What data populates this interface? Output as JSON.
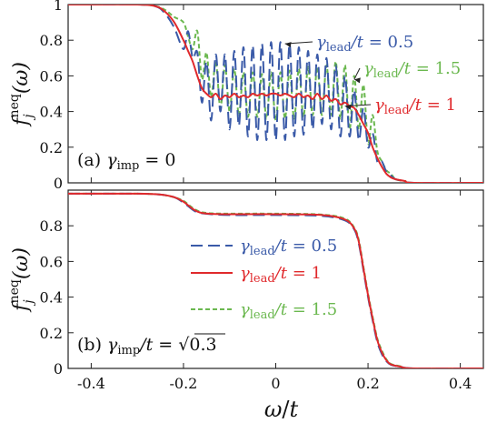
{
  "chart_data": [
    {
      "type": "line",
      "panel_label": "(a) γ_imp = 0",
      "ylabel": "f_j^neq(ω)",
      "xlabel": "",
      "xlim": [
        -0.45,
        0.45
      ],
      "ylim": [
        0,
        1
      ],
      "x_ticks": [
        -0.4,
        -0.2,
        0,
        0.2,
        0.4
      ],
      "y_ticks": [
        0,
        0.2,
        0.4,
        0.6,
        0.8,
        1
      ],
      "y_tick_labels": [
        "0",
        "0.2",
        "0.4",
        "0.6",
        "0.8",
        "1"
      ],
      "x_tick_labels": [],
      "legend": "annotations-with-arrows",
      "series": [
        {
          "name": "γ_lead/t = 0.5",
          "color": "#3a5aa8",
          "dash": "long-dash",
          "x": [
            -0.45,
            -0.3,
            -0.26,
            -0.24,
            -0.22,
            -0.2,
            -0.19,
            -0.18,
            -0.17,
            -0.16,
            -0.15,
            -0.14,
            -0.13,
            -0.12,
            -0.11,
            -0.1,
            -0.09,
            -0.08,
            -0.07,
            -0.06,
            -0.05,
            -0.04,
            -0.03,
            -0.02,
            -0.01,
            0.0,
            0.01,
            0.02,
            0.03,
            0.04,
            0.05,
            0.06,
            0.07,
            0.08,
            0.09,
            0.1,
            0.11,
            0.12,
            0.13,
            0.14,
            0.15,
            0.16,
            0.17,
            0.18,
            0.19,
            0.2,
            0.21,
            0.22,
            0.23,
            0.24,
            0.25,
            0.26,
            0.28,
            0.3,
            0.45
          ],
          "y": [
            1.0,
            1.0,
            0.99,
            0.95,
            0.87,
            0.75,
            0.85,
            0.7,
            0.73,
            0.45,
            0.68,
            0.35,
            0.72,
            0.4,
            0.72,
            0.3,
            0.74,
            0.32,
            0.76,
            0.26,
            0.77,
            0.24,
            0.78,
            0.24,
            0.79,
            0.24,
            0.79,
            0.24,
            0.78,
            0.26,
            0.76,
            0.27,
            0.74,
            0.3,
            0.72,
            0.33,
            0.7,
            0.3,
            0.66,
            0.26,
            0.6,
            0.26,
            0.52,
            0.24,
            0.42,
            0.2,
            0.28,
            0.12,
            0.12,
            0.06,
            0.04,
            0.02,
            0.01,
            0.0,
            0.0
          ]
        },
        {
          "name": "γ_lead/t = 1",
          "color": "#e0292c",
          "dash": "solid",
          "x": [
            -0.45,
            -0.3,
            -0.26,
            -0.24,
            -0.22,
            -0.2,
            -0.19,
            -0.18,
            -0.17,
            -0.16,
            -0.15,
            -0.14,
            -0.13,
            -0.12,
            -0.11,
            -0.1,
            -0.09,
            -0.08,
            -0.07,
            -0.06,
            -0.05,
            -0.04,
            -0.03,
            -0.02,
            -0.01,
            0.0,
            0.01,
            0.02,
            0.03,
            0.04,
            0.05,
            0.06,
            0.07,
            0.08,
            0.09,
            0.1,
            0.11,
            0.12,
            0.13,
            0.14,
            0.15,
            0.16,
            0.17,
            0.18,
            0.19,
            0.2,
            0.21,
            0.22,
            0.23,
            0.24,
            0.25,
            0.26,
            0.28,
            0.3,
            0.45
          ],
          "y": [
            1.0,
            1.0,
            0.99,
            0.96,
            0.9,
            0.8,
            0.74,
            0.68,
            0.6,
            0.53,
            0.5,
            0.48,
            0.5,
            0.47,
            0.49,
            0.48,
            0.5,
            0.48,
            0.49,
            0.48,
            0.5,
            0.49,
            0.5,
            0.49,
            0.5,
            0.5,
            0.49,
            0.5,
            0.49,
            0.48,
            0.5,
            0.48,
            0.49,
            0.47,
            0.5,
            0.47,
            0.49,
            0.46,
            0.47,
            0.44,
            0.45,
            0.43,
            0.42,
            0.38,
            0.33,
            0.28,
            0.2,
            0.14,
            0.09,
            0.05,
            0.03,
            0.02,
            0.01,
            0.0,
            0.0
          ]
        },
        {
          "name": "γ_lead/t = 1.5",
          "color": "#6bb84f",
          "dash": "short-dash",
          "x": [
            -0.45,
            -0.3,
            -0.26,
            -0.24,
            -0.22,
            -0.2,
            -0.19,
            -0.18,
            -0.17,
            -0.16,
            -0.15,
            -0.14,
            -0.13,
            -0.12,
            -0.11,
            -0.1,
            -0.09,
            -0.08,
            -0.07,
            -0.06,
            -0.05,
            -0.04,
            -0.03,
            -0.02,
            -0.01,
            0.0,
            0.01,
            0.02,
            0.03,
            0.04,
            0.05,
            0.06,
            0.07,
            0.08,
            0.09,
            0.1,
            0.11,
            0.12,
            0.13,
            0.14,
            0.15,
            0.16,
            0.17,
            0.18,
            0.19,
            0.2,
            0.21,
            0.22,
            0.23,
            0.24,
            0.25,
            0.26,
            0.28,
            0.3,
            0.45
          ],
          "y": [
            1.0,
            1.0,
            0.99,
            0.97,
            0.93,
            0.9,
            0.82,
            0.75,
            0.85,
            0.58,
            0.73,
            0.48,
            0.68,
            0.42,
            0.66,
            0.4,
            0.64,
            0.38,
            0.62,
            0.37,
            0.62,
            0.37,
            0.61,
            0.36,
            0.62,
            0.35,
            0.62,
            0.36,
            0.63,
            0.36,
            0.64,
            0.37,
            0.65,
            0.38,
            0.65,
            0.38,
            0.66,
            0.38,
            0.68,
            0.36,
            0.66,
            0.3,
            0.6,
            0.3,
            0.55,
            0.22,
            0.38,
            0.18,
            0.12,
            0.07,
            0.05,
            0.02,
            0.01,
            0.0,
            0.0
          ]
        }
      ],
      "annotations": [
        {
          "text": "γ_lead/t = 0.5",
          "color": "#3a5aa8",
          "points_to": [
            0.02,
            0.78
          ]
        },
        {
          "text": "γ_lead/t = 1.5",
          "color": "#6bb84f",
          "points_to": [
            0.17,
            0.58
          ]
        },
        {
          "text": "γ_lead/t = 1",
          "color": "#e0292c",
          "points_to": [
            0.15,
            0.43
          ]
        }
      ]
    },
    {
      "type": "line",
      "panel_label": "(b) γ_imp/t = √0.3",
      "ylabel": "f_j^neq(ω)",
      "xlabel": "ω/t",
      "xlim": [
        -0.45,
        0.45
      ],
      "ylim": [
        0,
        1
      ],
      "x_ticks": [
        -0.4,
        -0.2,
        0,
        0.2,
        0.4
      ],
      "x_tick_labels": [
        "-0.4",
        "-0.2",
        "0",
        "0.2",
        "0.4"
      ],
      "y_ticks": [
        0,
        0.2,
        0.4,
        0.6,
        0.8
      ],
      "y_tick_labels": [
        "0",
        "0.2",
        "0.4",
        "0.6",
        "0.8"
      ],
      "legend": "center",
      "series": [
        {
          "name": "γ_lead/t = 0.5",
          "color": "#3a5aa8",
          "dash": "long-dash",
          "x": [
            -0.45,
            -0.3,
            -0.25,
            -0.22,
            -0.2,
            -0.19,
            -0.18,
            -0.17,
            -0.16,
            -0.14,
            -0.1,
            0.0,
            0.1,
            0.15,
            0.17,
            0.18,
            0.19,
            0.2,
            0.21,
            0.22,
            0.23,
            0.24,
            0.25,
            0.27,
            0.3,
            0.45
          ],
          "y": [
            0.98,
            0.98,
            0.975,
            0.96,
            0.93,
            0.91,
            0.89,
            0.875,
            0.87,
            0.865,
            0.86,
            0.86,
            0.855,
            0.83,
            0.78,
            0.7,
            0.55,
            0.4,
            0.27,
            0.15,
            0.08,
            0.04,
            0.02,
            0.01,
            0.0,
            0.0
          ]
        },
        {
          "name": "γ_lead/t = 1",
          "color": "#e0292c",
          "dash": "solid",
          "x": [
            -0.45,
            -0.3,
            -0.25,
            -0.22,
            -0.2,
            -0.19,
            -0.18,
            -0.17,
            -0.16,
            -0.14,
            -0.1,
            0.0,
            0.1,
            0.15,
            0.17,
            0.18,
            0.19,
            0.2,
            0.21,
            0.22,
            0.23,
            0.24,
            0.25,
            0.27,
            0.3,
            0.45
          ],
          "y": [
            0.98,
            0.98,
            0.975,
            0.96,
            0.935,
            0.915,
            0.895,
            0.88,
            0.872,
            0.867,
            0.865,
            0.865,
            0.86,
            0.835,
            0.785,
            0.71,
            0.56,
            0.41,
            0.28,
            0.16,
            0.09,
            0.045,
            0.022,
            0.01,
            0.0,
            0.0
          ]
        },
        {
          "name": "γ_lead/t = 1.5",
          "color": "#6bb84f",
          "dash": "short-dash",
          "x": [
            -0.45,
            -0.3,
            -0.25,
            -0.22,
            -0.2,
            -0.19,
            -0.18,
            -0.17,
            -0.16,
            -0.14,
            -0.1,
            0.0,
            0.1,
            0.15,
            0.17,
            0.18,
            0.19,
            0.2,
            0.21,
            0.22,
            0.23,
            0.24,
            0.25,
            0.27,
            0.3,
            0.45
          ],
          "y": [
            0.98,
            0.98,
            0.975,
            0.96,
            0.94,
            0.92,
            0.9,
            0.885,
            0.876,
            0.87,
            0.868,
            0.868,
            0.863,
            0.84,
            0.79,
            0.72,
            0.57,
            0.42,
            0.29,
            0.17,
            0.1,
            0.05,
            0.025,
            0.012,
            0.0,
            0.0
          ]
        }
      ]
    }
  ]
}
